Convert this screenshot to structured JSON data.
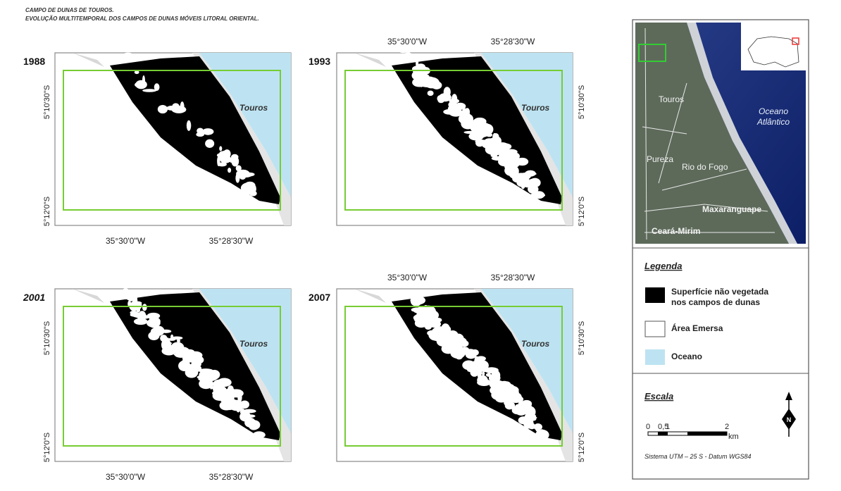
{
  "header": {
    "title": "CAMPO  DE DUNAS  DE  TOUROS.",
    "subtitle": "EVOLUÇÃO MULTITEMPORAL DOS CAMPOS DE DUNAS MÓVEIS LITORAL ORIENTAL."
  },
  "panels": [
    {
      "year": "1988",
      "place": "Touros",
      "lat_labels": [
        "5°10'30\"S",
        "5°12'0\"S"
      ],
      "lon_labels": [
        "35°30'0\"W",
        "35°28'30\"W"
      ]
    },
    {
      "year": "1993",
      "place": "Touros",
      "lat_labels": [
        "5°10'30\"S",
        "5°12'0\"S"
      ],
      "lon_labels": [
        "35°30'0\"W",
        "35°28'30\"W"
      ]
    },
    {
      "year": "2001",
      "place": "Touros",
      "lat_labels": [
        "5°10'30\"S",
        "5°12'0\"S"
      ],
      "lon_labels": [
        "35°30'0\"W",
        "35°28'30\"W"
      ]
    },
    {
      "year": "2007",
      "place": "Touros",
      "lat_labels": [
        "5°10'30\"S",
        "5°12'0\"S"
      ],
      "lon_labels": [
        "35°30'0\"W",
        "35°28'30\"W"
      ]
    }
  ],
  "inset": {
    "places": [
      "Touros",
      "Pureza",
      "Rio do Fogo",
      "Maxaranguape",
      "Ceará-Mirim"
    ],
    "ocean": [
      "Oceano",
      "Atlântico"
    ]
  },
  "legend": {
    "title": "Legenda",
    "items": [
      {
        "lines": [
          "Superfície não vegetada",
          "nos campos de dunas"
        ]
      },
      {
        "lines": [
          "Área Emersa"
        ]
      },
      {
        "lines": [
          "Oceano"
        ]
      }
    ]
  },
  "scale": {
    "title": "Escala",
    "ticks": [
      "0",
      "0,5",
      "1",
      "2"
    ],
    "unit": "km",
    "north": "N",
    "system": "Sistema UTM – 25 S - Datum WGS84"
  }
}
